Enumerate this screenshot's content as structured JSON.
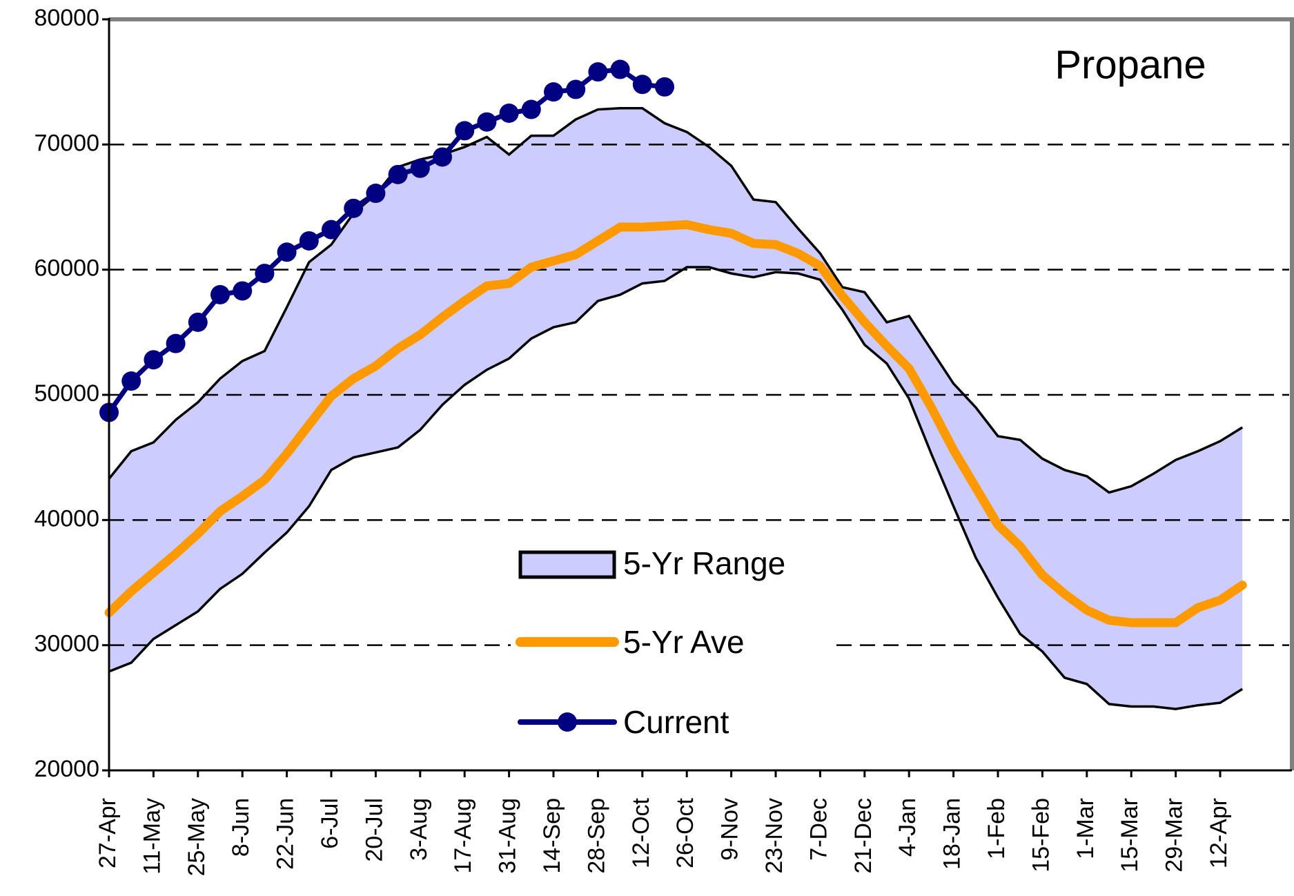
{
  "chart_data": {
    "type": "line",
    "annotation": "Propane",
    "categories": [
      "27-Apr",
      null,
      "11-May",
      null,
      "25-May",
      null,
      "8-Jun",
      null,
      "22-Jun",
      null,
      "6-Jul",
      null,
      "20-Jul",
      null,
      "3-Aug",
      null,
      "17-Aug",
      null,
      "31-Aug",
      null,
      "14-Sep",
      null,
      "28-Sep",
      null,
      "12-Oct",
      null,
      "26-Oct",
      null,
      "9-Nov",
      null,
      "23-Nov",
      null,
      "7-Dec",
      null,
      "21-Dec",
      null,
      "4-Jan",
      null,
      "18-Jan",
      null,
      "1-Feb",
      null,
      "15-Feb",
      null,
      "1-Mar",
      null,
      "15-Mar",
      null,
      "29-Mar",
      null,
      "12-Apr",
      null
    ],
    "band": {
      "name": "5-Yr Range",
      "color": "#ccccff",
      "edge_color": "#000000",
      "high": [
        43300,
        45500,
        46200,
        48000,
        49400,
        51300,
        52700,
        53500,
        57000,
        60600,
        62000,
        64500,
        66000,
        68200,
        68800,
        69200,
        69800,
        70600,
        69200,
        70700,
        70700,
        72000,
        72800,
        72900,
        72900,
        71700,
        71000,
        69800,
        68300,
        65600,
        65400,
        63300,
        61300,
        58600,
        58200,
        55800,
        56300,
        53600,
        50900,
        49000,
        46700,
        46400,
        44900,
        44000,
        43500,
        42200,
        42700,
        43700,
        44800,
        45500,
        46300,
        47400
      ],
      "low": [
        27900,
        28600,
        30500,
        31600,
        32700,
        34500,
        35700,
        37400,
        39000,
        41100,
        44000,
        45000,
        45400,
        45800,
        47200,
        49200,
        50800,
        52000,
        52900,
        54500,
        55400,
        55800,
        57500,
        58000,
        58900,
        59100,
        60200,
        60200,
        59700,
        59400,
        59800,
        59700,
        59200,
        56800,
        54000,
        52500,
        49700,
        45300,
        41100,
        37000,
        33800,
        30900,
        29500,
        27400,
        26900,
        25300,
        25100,
        25100,
        24900,
        25200,
        25400,
        26500
      ]
    },
    "series": [
      {
        "name": "5-Yr Ave",
        "color": "#ff9900",
        "values": [
          32600,
          34300,
          35800,
          37300,
          38900,
          40700,
          41900,
          43200,
          45300,
          47600,
          49900,
          51300,
          52300,
          53700,
          54800,
          56200,
          57500,
          58700,
          58900,
          60200,
          60700,
          61200,
          62300,
          63400,
          63400,
          63500,
          63600,
          63200,
          62900,
          62100,
          62000,
          61300,
          60300,
          57900,
          55800,
          53900,
          52100,
          49000,
          45600,
          42600,
          39600,
          37900,
          35600,
          34100,
          32800,
          32000,
          31800,
          31800,
          31800,
          33000,
          33600,
          34800
        ]
      },
      {
        "name": "Current",
        "color": "#000080",
        "markers": true,
        "values": [
          48600,
          51100,
          52800,
          54100,
          55800,
          58000,
          58300,
          59700,
          61400,
          62300,
          63200,
          64900,
          66100,
          67600,
          68100,
          69000,
          71100,
          71800,
          72500,
          72800,
          74200,
          74400,
          75800,
          76000,
          74800,
          74600,
          null,
          null,
          null,
          null,
          null,
          null,
          null,
          null,
          null,
          null,
          null,
          null,
          null,
          null,
          null,
          null,
          null,
          null,
          null,
          null,
          null,
          null,
          null,
          null,
          null,
          null
        ]
      }
    ],
    "ylim": [
      20000,
      80000
    ],
    "yticks": [
      20000,
      30000,
      40000,
      50000,
      60000,
      70000,
      80000
    ],
    "grid": true
  }
}
